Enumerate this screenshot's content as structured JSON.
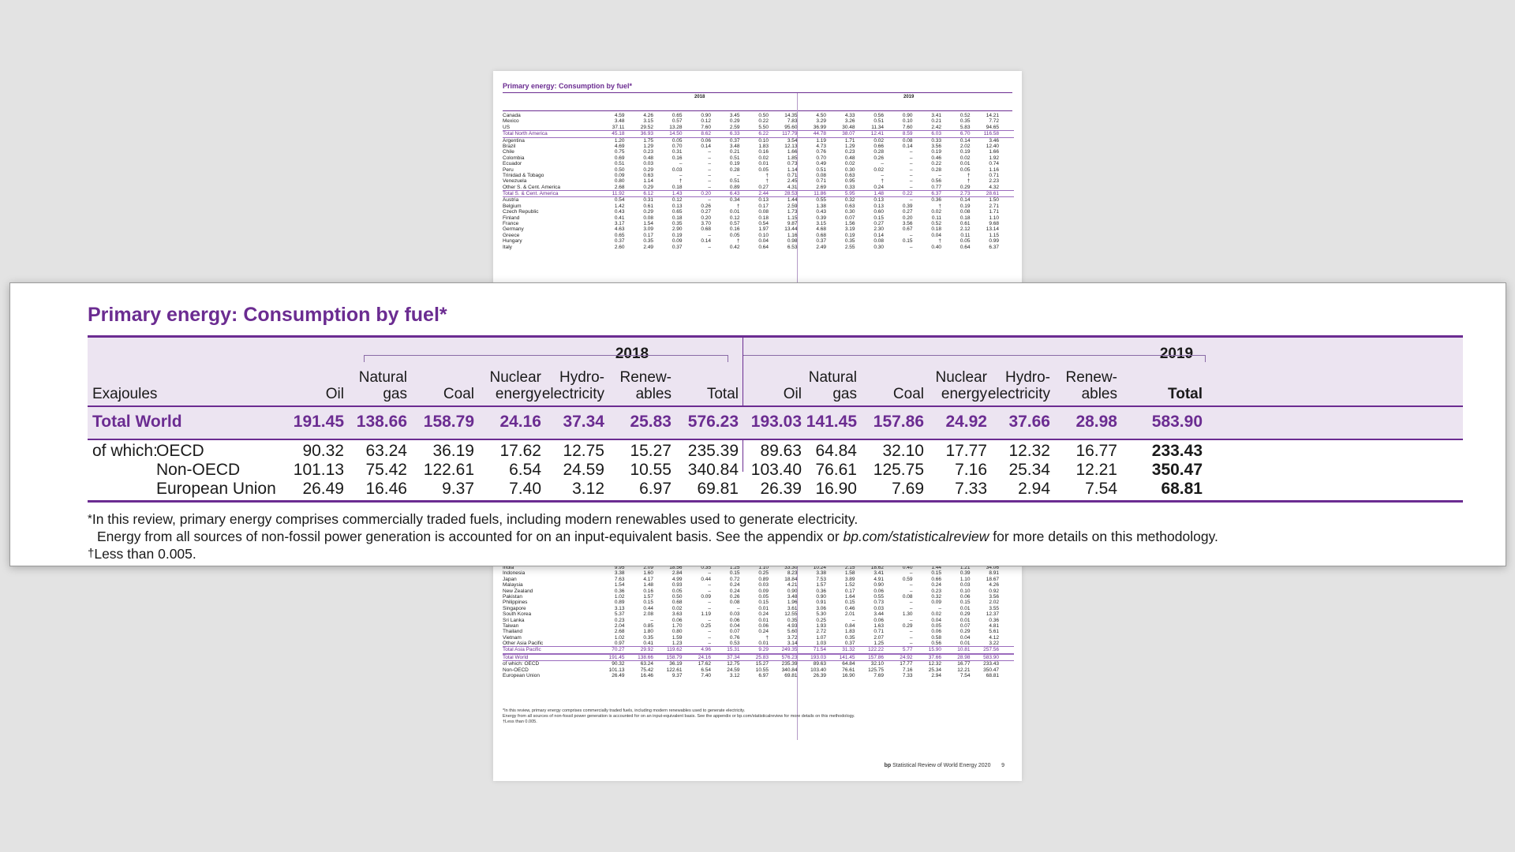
{
  "title": "Primary energy: Consumption by fuel*",
  "unit_label": "Exajoules",
  "years": [
    "2018",
    "2019"
  ],
  "columns_2018": [
    "Oil",
    "Natural gas",
    "Coal",
    "Nuclear energy",
    "Hydro-electricity",
    "Renew-ables",
    "Total"
  ],
  "columns_2019": [
    "Oil",
    "Natural gas",
    "Coal",
    "Nuclear energy",
    "Hydro-electricity",
    "Renew-ables",
    "Total"
  ],
  "column_lines": {
    "oil": [
      "",
      "Oil"
    ],
    "gas": [
      "Natural",
      "gas"
    ],
    "coal": [
      "",
      "Coal"
    ],
    "nuclear": [
      "Nuclear",
      "energy"
    ],
    "hydro": [
      "Hydro-",
      "electricity"
    ],
    "renew": [
      "Renew-",
      "ables"
    ],
    "total": [
      "",
      "Total"
    ]
  },
  "total_world": {
    "label": "Total World",
    "y2018": [
      "191.45",
      "138.66",
      "158.79",
      "24.16",
      "37.34",
      "25.83",
      "576.23"
    ],
    "y2019": [
      "193.03",
      "141.45",
      "157.86",
      "24.92",
      "37.66",
      "28.98",
      "583.90"
    ]
  },
  "breakdown": [
    {
      "prefix": "of which:",
      "label": "OECD",
      "y2018": [
        "90.32",
        "63.24",
        "36.19",
        "17.62",
        "12.75",
        "15.27",
        "235.39"
      ],
      "y2019": [
        "89.63",
        "64.84",
        "32.10",
        "17.77",
        "12.32",
        "16.77",
        "233.43"
      ]
    },
    {
      "prefix": "",
      "label": "Non-OECD",
      "y2018": [
        "101.13",
        "75.42",
        "122.61",
        "6.54",
        "24.59",
        "10.55",
        "340.84"
      ],
      "y2019": [
        "103.40",
        "76.61",
        "125.75",
        "7.16",
        "25.34",
        "12.21",
        "350.47"
      ]
    },
    {
      "prefix": "",
      "label": "European Union",
      "y2018": [
        "26.49",
        "16.46",
        "9.37",
        "7.40",
        "3.12",
        "6.97",
        "69.81"
      ],
      "y2019": [
        "26.39",
        "16.90",
        "7.69",
        "7.33",
        "2.94",
        "7.54",
        "68.81"
      ]
    }
  ],
  "notes": {
    "star": "*",
    "line1": "In this review, primary energy comprises commercially traded fuels, including modern renewables used to generate electricity.",
    "line2_a": "Energy from all sources of non-fossil power generation is accounted for on an input-equivalent basis. See the appendix or ",
    "line2_link": "bp.com/statisticalreview",
    "line2_b": " for more details on this methodology.",
    "dagger": "†",
    "line3": "Less than 0.005."
  },
  "background_page": {
    "title": "Primary energy: Consumption by fuel*",
    "header_cols": [
      "Oil",
      "Natural gas",
      "Coal",
      "Nuclear energy",
      "Hydro-electricity",
      "Renew-ables",
      "Total"
    ],
    "rows_top": [
      [
        "Canada",
        "4.59",
        "4.26",
        "0.65",
        "0.90",
        "3.45",
        "0.50",
        "14.35",
        "4.50",
        "4.33",
        "0.56",
        "0.90",
        "3.41",
        "0.52",
        "14.21"
      ],
      [
        "Mexico",
        "3.48",
        "3.15",
        "0.57",
        "0.12",
        "0.29",
        "0.22",
        "7.83",
        "3.29",
        "3.26",
        "0.51",
        "0.10",
        "0.21",
        "0.35",
        "7.72"
      ],
      [
        "US",
        "37.11",
        "29.52",
        "13.28",
        "7.60",
        "2.59",
        "5.50",
        "95.60",
        "36.99",
        "30.48",
        "11.34",
        "7.60",
        "2.42",
        "5.83",
        "94.65"
      ],
      [
        "Total North America",
        "45.18",
        "36.93",
        "14.50",
        "8.62",
        "6.33",
        "6.22",
        "117.79",
        "44.78",
        "38.07",
        "12.41",
        "8.59",
        "6.03",
        "6.70",
        "116.58"
      ],
      [
        "Argentina",
        "1.20",
        "1.75",
        "0.05",
        "0.06",
        "0.37",
        "0.10",
        "3.54",
        "1.19",
        "1.71",
        "0.02",
        "0.08",
        "0.33",
        "0.14",
        "3.46"
      ],
      [
        "Brazil",
        "4.69",
        "1.29",
        "0.70",
        "0.14",
        "3.48",
        "1.83",
        "12.13",
        "4.73",
        "1.29",
        "0.66",
        "0.14",
        "3.56",
        "2.02",
        "12.40"
      ],
      [
        "Chile",
        "0.75",
        "0.23",
        "0.31",
        "–",
        "0.21",
        "0.16",
        "1.66",
        "0.76",
        "0.23",
        "0.28",
        "–",
        "0.19",
        "0.19",
        "1.66"
      ],
      [
        "Colombia",
        "0.69",
        "0.48",
        "0.16",
        "–",
        "0.51",
        "0.02",
        "1.85",
        "0.70",
        "0.48",
        "0.26",
        "–",
        "0.46",
        "0.02",
        "1.92"
      ],
      [
        "Ecuador",
        "0.51",
        "0.03",
        "–",
        "–",
        "0.19",
        "0.01",
        "0.73",
        "0.49",
        "0.02",
        "–",
        "–",
        "0.22",
        "0.01",
        "0.74"
      ],
      [
        "Peru",
        "0.50",
        "0.29",
        "0.03",
        "–",
        "0.28",
        "0.05",
        "1.14",
        "0.51",
        "0.30",
        "0.02",
        "–",
        "0.28",
        "0.05",
        "1.16"
      ],
      [
        "Trinidad & Tobago",
        "0.09",
        "0.63",
        "–",
        "–",
        "–",
        "†",
        "0.71",
        "0.08",
        "0.63",
        "–",
        "–",
        "–",
        "†",
        "0.71"
      ],
      [
        "Venezuela",
        "0.80",
        "1.14",
        "†",
        "–",
        "0.51",
        "†",
        "2.45",
        "0.71",
        "0.95",
        "†",
        "–",
        "0.56",
        "†",
        "2.23"
      ],
      [
        "Other S. & Cent. America",
        "2.68",
        "0.29",
        "0.18",
        "–",
        "0.89",
        "0.27",
        "4.31",
        "2.69",
        "0.33",
        "0.24",
        "–",
        "0.77",
        "0.29",
        "4.32"
      ],
      [
        "Total S. & Cent. America",
        "11.92",
        "6.12",
        "1.43",
        "0.20",
        "6.43",
        "2.44",
        "28.53",
        "11.86",
        "5.95",
        "1.48",
        "0.22",
        "6.37",
        "2.73",
        "28.61"
      ],
      [
        "Austria",
        "0.54",
        "0.31",
        "0.12",
        "–",
        "0.34",
        "0.13",
        "1.44",
        "0.55",
        "0.32",
        "0.13",
        "–",
        "0.36",
        "0.14",
        "1.50"
      ],
      [
        "Belgium",
        "1.42",
        "0.61",
        "0.13",
        "0.26",
        "†",
        "0.17",
        "2.59",
        "1.38",
        "0.63",
        "0.13",
        "0.39",
        "†",
        "0.19",
        "2.71"
      ],
      [
        "Czech Republic",
        "0.43",
        "0.29",
        "0.65",
        "0.27",
        "0.01",
        "0.08",
        "1.73",
        "0.43",
        "0.30",
        "0.60",
        "0.27",
        "0.02",
        "0.08",
        "1.71"
      ],
      [
        "Finland",
        "0.41",
        "0.08",
        "0.18",
        "0.20",
        "0.12",
        "0.18",
        "1.15",
        "0.39",
        "0.07",
        "0.15",
        "0.20",
        "0.11",
        "0.18",
        "1.10"
      ],
      [
        "France",
        "3.17",
        "1.54",
        "0.35",
        "3.70",
        "0.57",
        "0.54",
        "9.87",
        "3.15",
        "1.56",
        "0.27",
        "3.56",
        "0.52",
        "0.61",
        "9.68"
      ],
      [
        "Germany",
        "4.63",
        "3.09",
        "2.90",
        "0.68",
        "0.16",
        "1.97",
        "13.44",
        "4.68",
        "3.19",
        "2.30",
        "0.67",
        "0.18",
        "2.12",
        "13.14"
      ],
      [
        "Greece",
        "0.65",
        "0.17",
        "0.19",
        "–",
        "0.05",
        "0.10",
        "1.16",
        "0.68",
        "0.19",
        "0.14",
        "–",
        "0.04",
        "0.11",
        "1.15"
      ],
      [
        "Hungary",
        "0.37",
        "0.35",
        "0.09",
        "0.14",
        "†",
        "0.04",
        "0.98",
        "0.37",
        "0.35",
        "0.08",
        "0.15",
        "†",
        "0.05",
        "0.99"
      ],
      [
        "Italy",
        "2.60",
        "2.49",
        "0.37",
        "–",
        "0.42",
        "0.64",
        "6.53",
        "2.49",
        "2.55",
        "0.30",
        "–",
        "0.40",
        "0.64",
        "6.37"
      ]
    ],
    "rows_bottom": [
      [
        "India",
        "9.95",
        "2.09",
        "18.56",
        "0.35",
        "1.25",
        "1.10",
        "33.30",
        "10.24",
        "2.15",
        "18.62",
        "0.40",
        "1.44",
        "1.21",
        "34.06"
      ],
      [
        "Indonesia",
        "3.38",
        "1.60",
        "2.84",
        "–",
        "0.15",
        "0.25",
        "8.23",
        "3.38",
        "1.58",
        "3.41",
        "–",
        "0.15",
        "0.39",
        "8.91"
      ],
      [
        "Japan",
        "7.63",
        "4.17",
        "4.99",
        "0.44",
        "0.72",
        "0.89",
        "18.84",
        "7.53",
        "3.89",
        "4.91",
        "0.59",
        "0.66",
        "1.10",
        "18.67"
      ],
      [
        "Malaysia",
        "1.54",
        "1.48",
        "0.93",
        "–",
        "0.24",
        "0.03",
        "4.21",
        "1.57",
        "1.52",
        "0.90",
        "–",
        "0.24",
        "0.03",
        "4.26"
      ],
      [
        "New Zealand",
        "0.36",
        "0.16",
        "0.05",
        "–",
        "0.24",
        "0.09",
        "0.90",
        "0.36",
        "0.17",
        "0.06",
        "–",
        "0.23",
        "0.10",
        "0.92"
      ],
      [
        "Pakistan",
        "1.02",
        "1.57",
        "0.50",
        "0.09",
        "0.26",
        "0.05",
        "3.48",
        "0.90",
        "1.64",
        "0.55",
        "0.08",
        "0.32",
        "0.06",
        "3.56"
      ],
      [
        "Philippines",
        "0.89",
        "0.15",
        "0.68",
        "–",
        "0.08",
        "0.15",
        "1.96",
        "0.91",
        "0.15",
        "0.73",
        "–",
        "0.09",
        "0.15",
        "2.02"
      ],
      [
        "Singapore",
        "3.13",
        "0.44",
        "0.02",
        "–",
        "–",
        "0.01",
        "3.61",
        "3.06",
        "0.46",
        "0.03",
        "–",
        "–",
        "0.01",
        "3.55"
      ],
      [
        "South Korea",
        "5.37",
        "2.08",
        "3.63",
        "1.19",
        "0.03",
        "0.24",
        "12.55",
        "5.30",
        "2.01",
        "3.44",
        "1.30",
        "0.02",
        "0.29",
        "12.37"
      ],
      [
        "Sri Lanka",
        "0.23",
        "–",
        "0.06",
        "–",
        "0.06",
        "0.01",
        "0.35",
        "0.25",
        "–",
        "0.06",
        "–",
        "0.04",
        "0.01",
        "0.36"
      ],
      [
        "Taiwan",
        "2.04",
        "0.85",
        "1.70",
        "0.25",
        "0.04",
        "0.06",
        "4.93",
        "1.93",
        "0.84",
        "1.63",
        "0.29",
        "0.05",
        "0.07",
        "4.81"
      ],
      [
        "Thailand",
        "2.68",
        "1.80",
        "0.80",
        "–",
        "0.07",
        "0.24",
        "5.60",
        "2.72",
        "1.83",
        "0.71",
        "–",
        "0.06",
        "0.29",
        "5.61"
      ],
      [
        "Vietnam",
        "1.02",
        "0.35",
        "1.59",
        "–",
        "0.76",
        "†",
        "3.72",
        "1.07",
        "0.35",
        "2.07",
        "–",
        "0.58",
        "0.04",
        "4.12"
      ],
      [
        "Other Asia Pacific",
        "0.97",
        "0.41",
        "1.23",
        "–",
        "0.53",
        "0.01",
        "3.14",
        "1.03",
        "0.37",
        "1.25",
        "–",
        "0.56",
        "0.01",
        "3.22"
      ],
      [
        "Total Asia Pacific",
        "70.27",
        "29.92",
        "119.62",
        "4.96",
        "15.31",
        "9.29",
        "249.35",
        "71.54",
        "31.32",
        "122.22",
        "5.77",
        "15.90",
        "10.81",
        "257.56"
      ],
      [
        "Total World",
        "191.45",
        "138.66",
        "158.79",
        "24.16",
        "37.34",
        "25.83",
        "576.23",
        "193.03",
        "141.45",
        "157.86",
        "24.92",
        "37.66",
        "28.98",
        "583.90"
      ],
      [
        "of which: OECD",
        "90.32",
        "63.24",
        "36.19",
        "17.62",
        "12.75",
        "15.27",
        "235.39",
        "89.63",
        "64.84",
        "32.10",
        "17.77",
        "12.32",
        "16.77",
        "233.43"
      ],
      [
        "Non-OECD",
        "101.13",
        "75.42",
        "122.61",
        "6.54",
        "24.59",
        "10.55",
        "340.84",
        "103.40",
        "76.61",
        "125.75",
        "7.16",
        "25.34",
        "12.21",
        "350.47"
      ],
      [
        "European Union",
        "26.49",
        "16.46",
        "9.37",
        "7.40",
        "3.12",
        "6.97",
        "69.81",
        "26.39",
        "16.90",
        "7.69",
        "7.33",
        "2.94",
        "7.54",
        "68.81"
      ]
    ],
    "footnote1": "*In this review, primary energy comprises commercially traded fuels, including modern renewables used to generate electricity.",
    "footnote2": "Energy from all sources of non-fossil power generation is accounted for on an input-equivalent basis. See the appendix or bp.com/statisticalreview for more details on this methodology.",
    "footnote3": "†Less than 0.005.",
    "page_footer_brand": "bp",
    "page_footer_text": "Statistical Review of World Energy 2020",
    "page_number": "9"
  }
}
